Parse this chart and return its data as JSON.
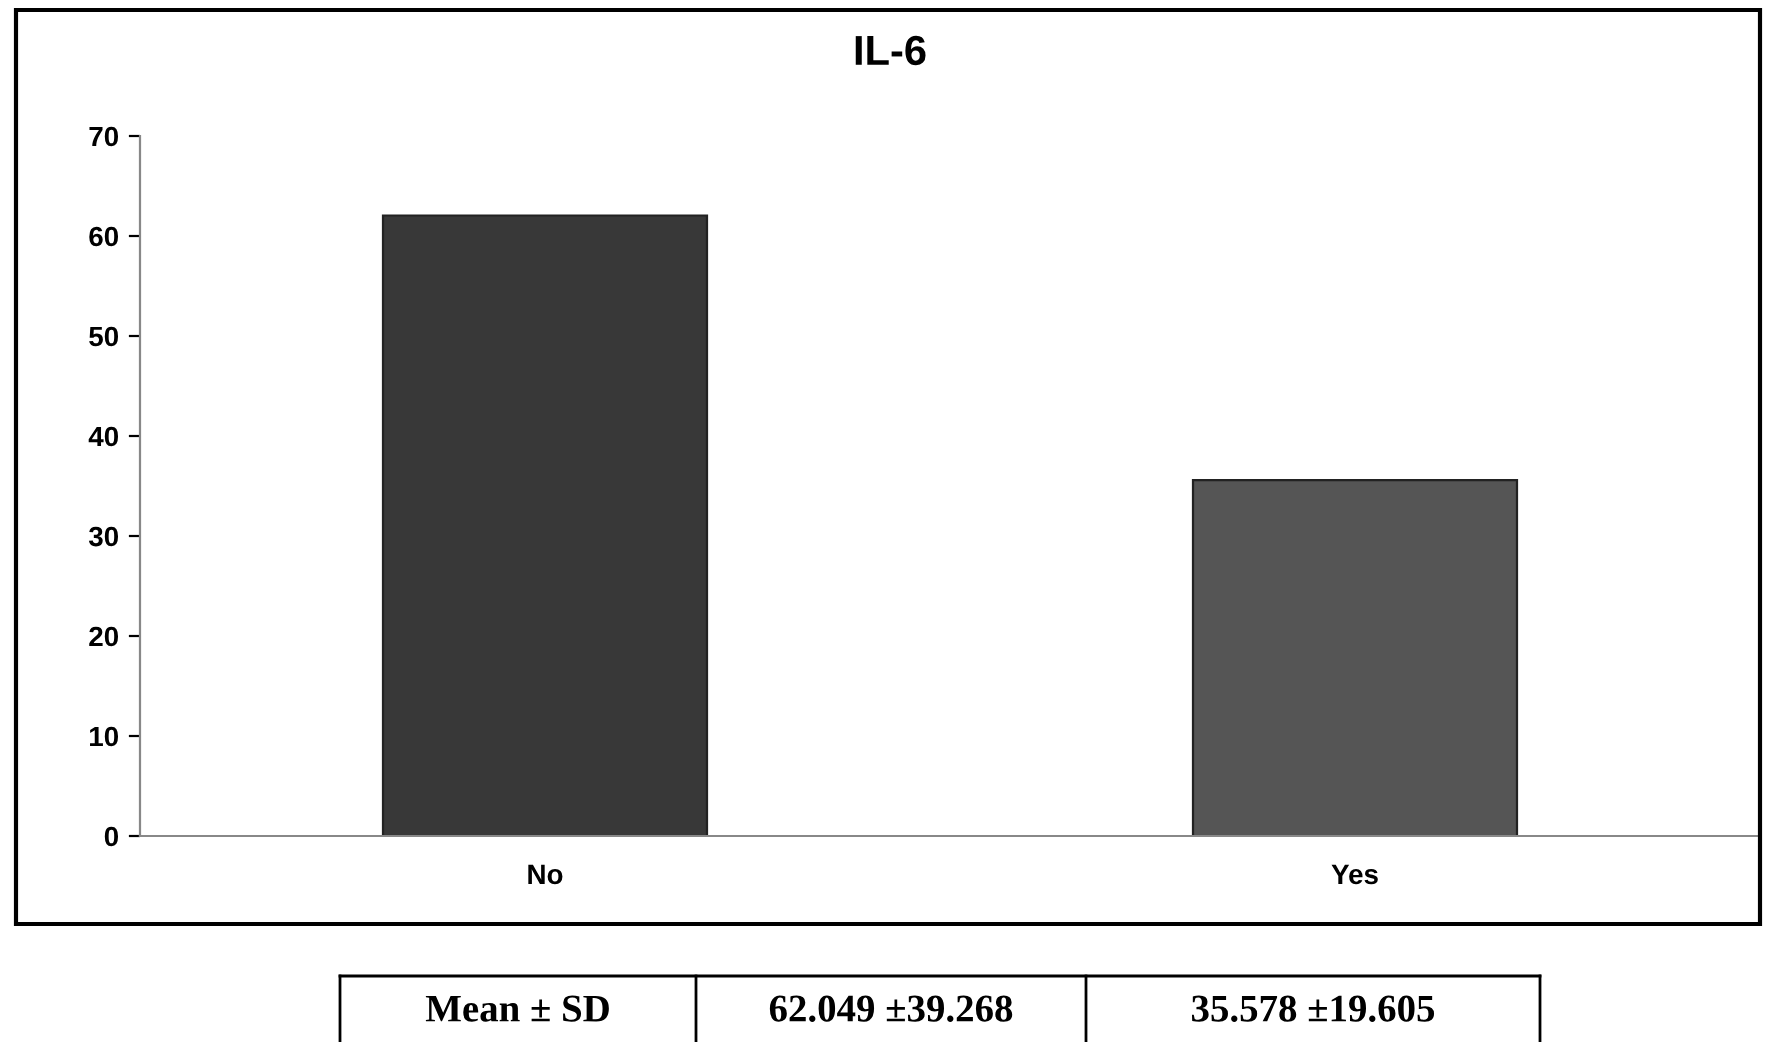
{
  "chart_data": {
    "type": "bar",
    "title": "IL-6",
    "categories": [
      "No",
      "Yes"
    ],
    "values": [
      62.049,
      35.578
    ],
    "colors": [
      "#383838",
      "#555555"
    ],
    "ylim": [
      0,
      70
    ],
    "yticks": [
      0,
      10,
      20,
      30,
      40,
      50,
      60,
      70
    ],
    "value_labels": [
      "62.049 ±39.268",
      "35.578 ±19.605"
    ],
    "annotations": [
      "Mean ± SD"
    ]
  }
}
